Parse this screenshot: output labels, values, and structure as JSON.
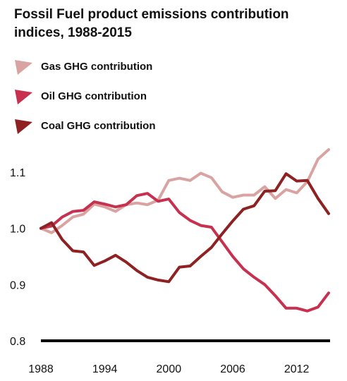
{
  "chart_data": {
    "type": "line",
    "title": "Fossil Fuel product emissions contribution indices, 1988-2015",
    "xlabel": "",
    "ylabel": "",
    "xlim": [
      1988,
      2015
    ],
    "ylim": [
      0.8,
      1.15
    ],
    "x_ticks": [
      "1988",
      "1994",
      "2000",
      "2006",
      "2012"
    ],
    "x_tick_values": [
      1988,
      1994,
      2000,
      2006,
      2012
    ],
    "y_ticks": [
      "0.8",
      "0.9",
      "1.0",
      "1.1"
    ],
    "y_tick_values": [
      0.8,
      0.9,
      1.0,
      1.1
    ],
    "legend_position": "top-left",
    "grid": false,
    "x": [
      1988,
      1989,
      1990,
      1991,
      1992,
      1993,
      1994,
      1995,
      1996,
      1997,
      1998,
      1999,
      2000,
      2001,
      2002,
      2003,
      2004,
      2005,
      2006,
      2007,
      2008,
      2009,
      2010,
      2011,
      2012,
      2013,
      2014,
      2015
    ],
    "series": [
      {
        "name": "Gas GHG contribution",
        "color": "#d9a3a1",
        "values": [
          1.0,
          0.992,
          1.005,
          1.02,
          1.025,
          1.043,
          1.038,
          1.03,
          1.042,
          1.045,
          1.042,
          1.05,
          1.085,
          1.089,
          1.085,
          1.098,
          1.09,
          1.065,
          1.055,
          1.059,
          1.059,
          1.074,
          1.053,
          1.069,
          1.063,
          1.083,
          1.123,
          1.14
        ]
      },
      {
        "name": "Oil GHG contribution",
        "color": "#c8304f",
        "values": [
          1.0,
          1.004,
          1.02,
          1.03,
          1.032,
          1.047,
          1.043,
          1.038,
          1.042,
          1.058,
          1.062,
          1.048,
          1.052,
          1.028,
          1.014,
          1.005,
          1.002,
          0.976,
          0.95,
          0.928,
          0.913,
          0.9,
          0.88,
          0.858,
          0.858,
          0.853,
          0.86,
          0.885
        ]
      },
      {
        "name": "Coal GHG contribution",
        "color": "#8e2122",
        "values": [
          1.0,
          1.01,
          0.98,
          0.96,
          0.958,
          0.934,
          0.942,
          0.952,
          0.94,
          0.925,
          0.913,
          0.908,
          0.905,
          0.931,
          0.933,
          0.95,
          0.966,
          0.99,
          1.013,
          1.034,
          1.04,
          1.066,
          1.067,
          1.097,
          1.084,
          1.085,
          1.053,
          1.026
        ]
      }
    ]
  }
}
